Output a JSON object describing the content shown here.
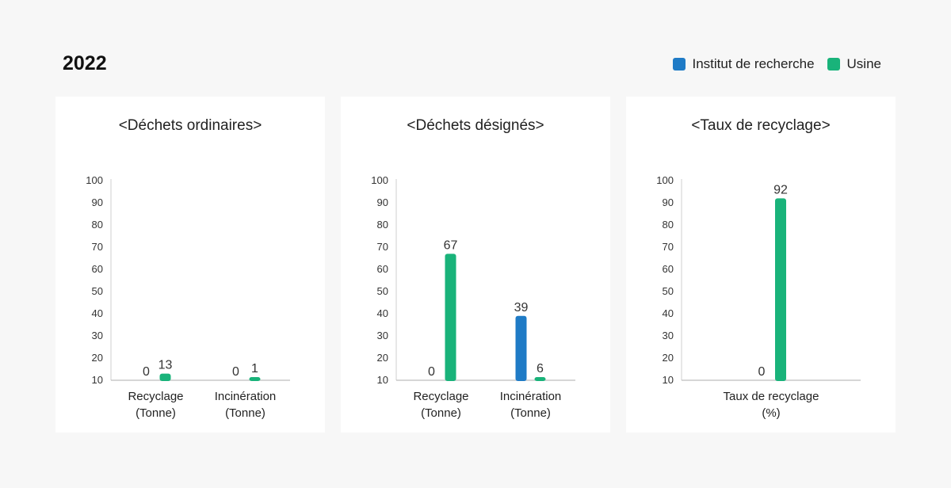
{
  "header": {
    "year": "2022"
  },
  "legend": {
    "items": [
      {
        "label": "Institut de recherche",
        "color": "#1f7bc6"
      },
      {
        "label": "Usine",
        "color": "#19b37a"
      }
    ]
  },
  "chart_data": [
    {
      "type": "bar",
      "title": "<Déchets ordinaires>",
      "categories": [
        [
          "Recyclage",
          "(Tonne)"
        ],
        [
          "Incinération",
          "(Tonne)"
        ]
      ],
      "series": [
        {
          "name": "Institut de recherche",
          "values": [
            0,
            0
          ]
        },
        {
          "name": "Usine",
          "values": [
            13,
            1
          ]
        }
      ],
      "yticks": [
        10,
        20,
        30,
        40,
        50,
        60,
        70,
        80,
        90,
        100
      ],
      "ylim": [
        0,
        100
      ]
    },
    {
      "type": "bar",
      "title": "<Déchets désignés>",
      "categories": [
        [
          "Recyclage",
          "(Tonne)"
        ],
        [
          "Incinération",
          "(Tonne)"
        ]
      ],
      "series": [
        {
          "name": "Institut de recherche",
          "values": [
            0,
            39
          ]
        },
        {
          "name": "Usine",
          "values": [
            67,
            6
          ]
        }
      ],
      "yticks": [
        10,
        20,
        30,
        40,
        50,
        60,
        70,
        80,
        90,
        100
      ],
      "ylim": [
        0,
        100
      ]
    },
    {
      "type": "bar",
      "title": "<Taux de recyclage>",
      "categories": [
        [
          "Taux de recyclage",
          "(%)"
        ]
      ],
      "series": [
        {
          "name": "Institut de recherche",
          "values": [
            0
          ]
        },
        {
          "name": "Usine",
          "values": [
            92
          ]
        }
      ],
      "yticks": [
        10,
        20,
        30,
        40,
        50,
        60,
        70,
        80,
        90,
        100
      ],
      "ylim": [
        0,
        100
      ]
    }
  ]
}
